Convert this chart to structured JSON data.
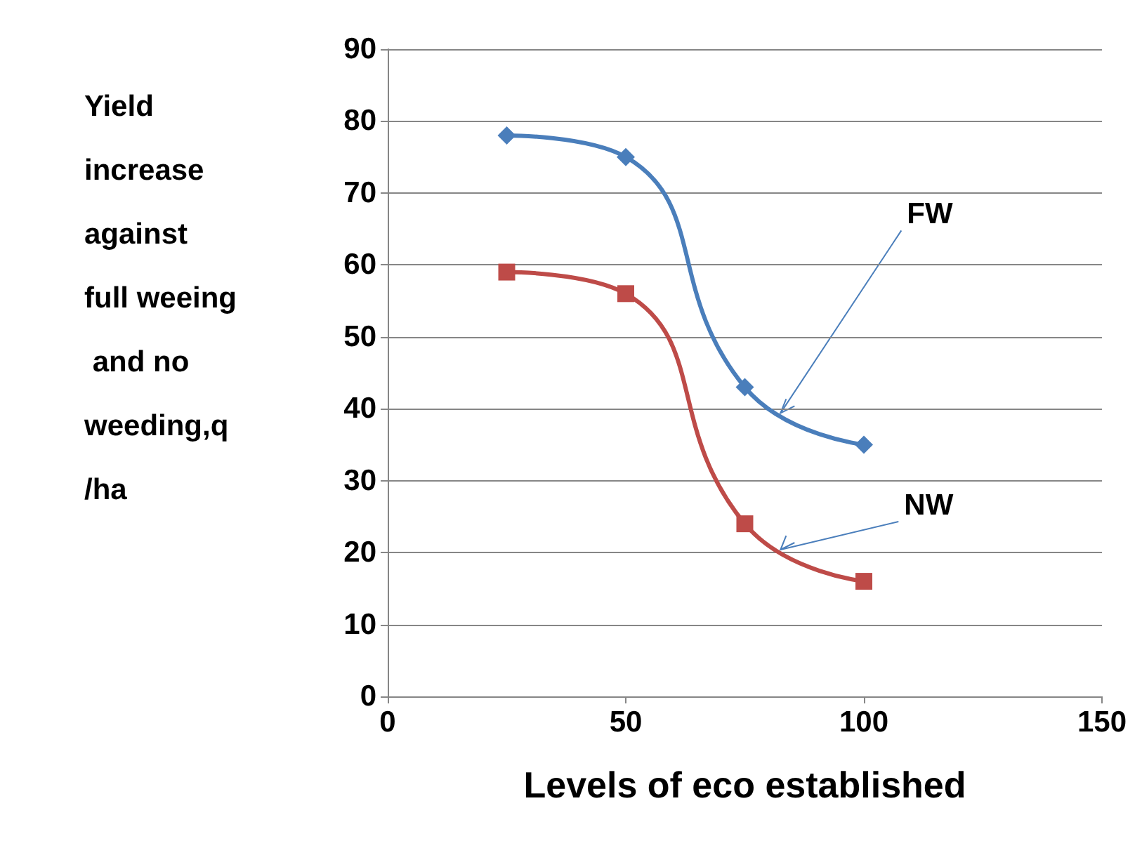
{
  "chart_data": {
    "type": "line",
    "xlabel": "Levels of eco established",
    "ylabel": "Yield increase against full weeing and no weeding,q /ha",
    "x": [
      25,
      50,
      75,
      100
    ],
    "series": [
      {
        "name": "FW",
        "color": "#4a7ebb",
        "values": [
          78,
          75,
          43,
          35
        ],
        "marker": "diamond"
      },
      {
        "name": "NW",
        "color": "#be4b48",
        "values": [
          59,
          56,
          24,
          16
        ],
        "marker": "square"
      }
    ],
    "xlim": [
      0,
      150
    ],
    "xticks": [
      0,
      50,
      100,
      150
    ],
    "ylim": [
      0,
      90
    ],
    "yticks": [
      0,
      10,
      20,
      30,
      40,
      50,
      60,
      70,
      80,
      90
    ],
    "grid": "y",
    "legend": false,
    "line_style": "solid"
  }
}
